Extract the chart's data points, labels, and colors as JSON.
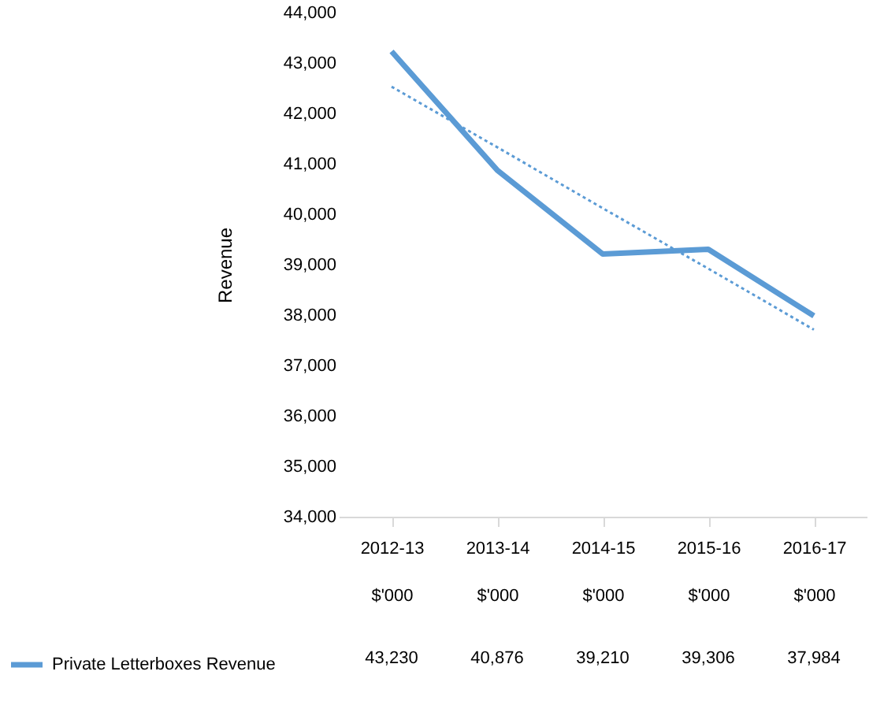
{
  "chart_data": {
    "type": "line",
    "ylabel": "Revenue",
    "categories": [
      "2012-13\n$'000",
      "2013-14\n$'000",
      "2014-15\n$'000",
      "2015-16\n$'000",
      "2016-17\n$'000"
    ],
    "series": [
      {
        "name": "Private Letterboxes Revenue",
        "color": "#5b9bd5",
        "line_style": "solid",
        "values": [
          43230,
          40876,
          39210,
          39306,
          37984
        ],
        "value_labels": [
          "43,230",
          "40,876",
          "39,210",
          "39,306",
          "37,984"
        ]
      },
      {
        "type": "line",
        "color": "#5b9bd5",
        "line_style": "dotted",
        "values": [
          42530,
          41330,
          40120,
          38920,
          37710
        ]
      }
    ],
    "ylim": [
      34000,
      44000
    ],
    "yticks": [
      {
        "value": 34000,
        "label": "34,000"
      },
      {
        "value": 35000,
        "label": "35,000"
      },
      {
        "value": 36000,
        "label": "36,000"
      },
      {
        "value": 37000,
        "label": "37,000"
      },
      {
        "value": 38000,
        "label": "38,000"
      },
      {
        "value": 39000,
        "label": "39,000"
      },
      {
        "value": 40000,
        "label": "40,000"
      },
      {
        "value": 41000,
        "label": "41,000"
      },
      {
        "value": 42000,
        "label": "42,000"
      },
      {
        "value": 43000,
        "label": "43,000"
      },
      {
        "value": 44000,
        "label": "44,000"
      }
    ],
    "grid": false,
    "legend": "bottom left",
    "marker": "none"
  }
}
